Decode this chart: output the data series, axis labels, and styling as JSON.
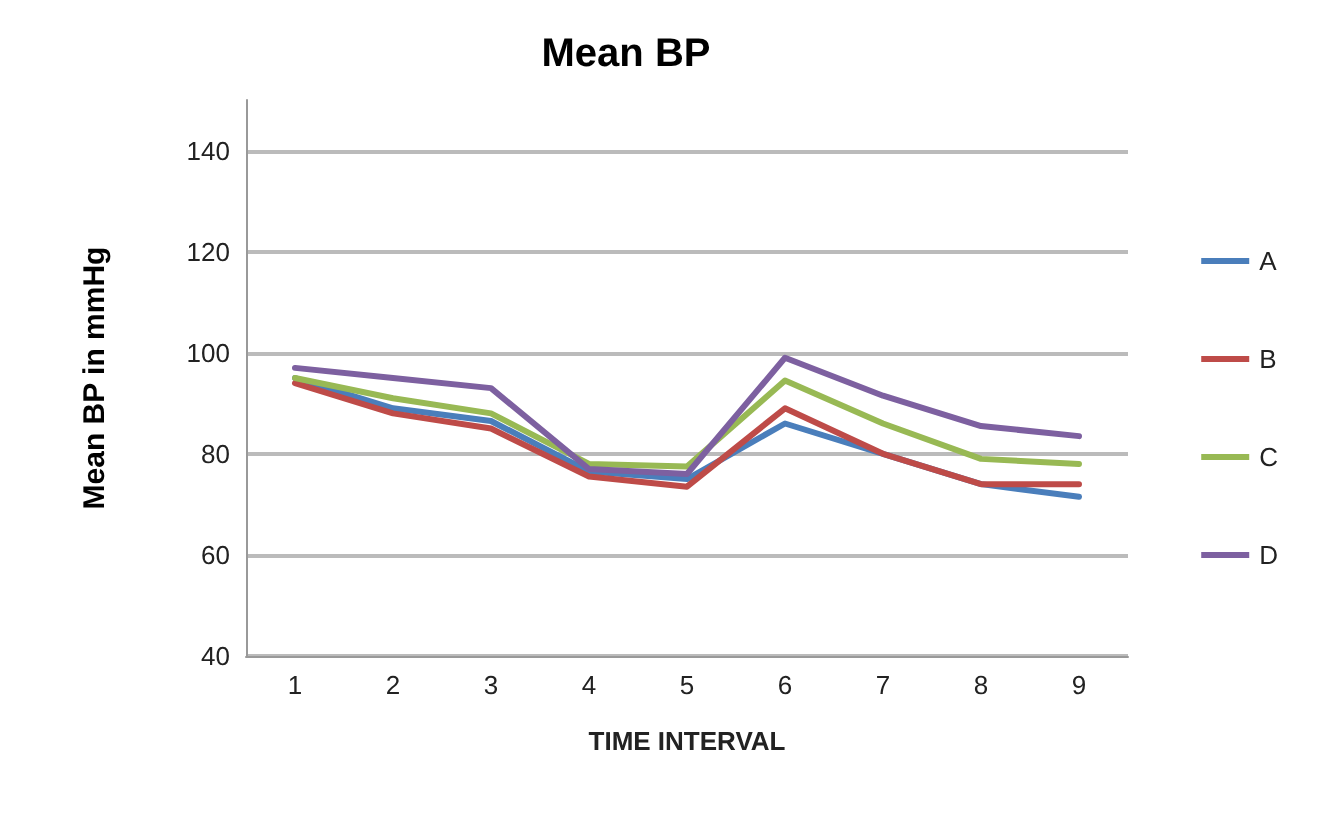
{
  "chart_data": {
    "type": "line",
    "title": "Mean BP",
    "xlabel": "TIME INTERVAL",
    "ylabel": "Mean BP in mmHg",
    "categories": [
      "1",
      "2",
      "3",
      "4",
      "5",
      "6",
      "7",
      "8",
      "9"
    ],
    "series": [
      {
        "name": "A",
        "color": "#4a7ebb",
        "values": [
          95,
          89,
          86.5,
          76.5,
          75,
          86,
          80,
          74,
          71.5
        ]
      },
      {
        "name": "B",
        "color": "#be4b48",
        "values": [
          94,
          88,
          85,
          75.5,
          73.5,
          89,
          80,
          74,
          74
        ]
      },
      {
        "name": "C",
        "color": "#98b954",
        "values": [
          95,
          91,
          88,
          78,
          77.5,
          94.5,
          86,
          79,
          78
        ]
      },
      {
        "name": "D",
        "color": "#7d60a0",
        "values": [
          97,
          95,
          93,
          77,
          76,
          99,
          91.5,
          85.5,
          83.5
        ]
      }
    ],
    "ylim": [
      40,
      150
    ],
    "yticks": [
      40,
      60,
      80,
      100,
      120,
      140
    ],
    "grid": "y",
    "legend": "right",
    "marker": "none",
    "line_style": "solid"
  }
}
